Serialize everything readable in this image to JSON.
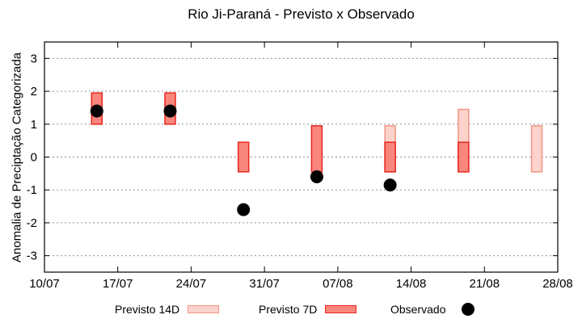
{
  "chart_data": {
    "type": "bar",
    "subtype": "range-bars-with-scatter",
    "title": "Rio Ji-Paraná - Previsto x Observado",
    "xlabel": "",
    "ylabel": "Anomalia de Preciptação Categorizada",
    "ylim": [
      -3.5,
      3.5
    ],
    "y_ticks": [
      3,
      2,
      1,
      0,
      -1,
      -2,
      -3
    ],
    "x_range_days": 49,
    "x_ticks": [
      {
        "day": 0,
        "label": "10/07"
      },
      {
        "day": 7,
        "label": "17/07"
      },
      {
        "day": 14,
        "label": "24/07"
      },
      {
        "day": 21,
        "label": "31/07"
      },
      {
        "day": 28,
        "label": "07/08"
      },
      {
        "day": 35,
        "label": "14/08"
      },
      {
        "day": 42,
        "label": "21/08"
      },
      {
        "day": 49,
        "label": "28/08"
      }
    ],
    "grid": {
      "horizontal": true,
      "style": "dotted",
      "color": "#909090"
    },
    "legend_position": "bottom",
    "series": [
      {
        "name": "Previsto 14D",
        "type": "range-bar",
        "fill": "#fbd3ca",
        "border": "#f29487",
        "points": [
          {
            "date": "12/08",
            "day": 33,
            "low": -0.45,
            "high": 0.95
          },
          {
            "date": "19/08",
            "day": 40,
            "low": -0.45,
            "high": 1.45
          },
          {
            "date": "26/08",
            "day": 47,
            "low": -0.45,
            "high": 0.95
          }
        ]
      },
      {
        "name": "Previsto 7D",
        "type": "range-bar",
        "fill": "#f9867d",
        "border": "#e8251e",
        "points": [
          {
            "date": "15/07",
            "day": 5,
            "low": 1.0,
            "high": 1.95
          },
          {
            "date": "22/07",
            "day": 12,
            "low": 1.0,
            "high": 1.95
          },
          {
            "date": "29/07",
            "day": 19,
            "low": -0.45,
            "high": 0.45
          },
          {
            "date": "05/08",
            "day": 26,
            "low": -0.45,
            "high": 0.95
          },
          {
            "date": "12/08",
            "day": 33,
            "low": -0.45,
            "high": 0.45
          },
          {
            "date": "19/08",
            "day": 40,
            "low": -0.45,
            "high": 0.45
          }
        ]
      },
      {
        "name": "Observado",
        "type": "scatter",
        "color": "#000000",
        "points": [
          {
            "date": "15/07",
            "day": 5,
            "value": 1.4
          },
          {
            "date": "22/07",
            "day": 12,
            "value": 1.4
          },
          {
            "date": "29/07",
            "day": 19,
            "value": -1.6
          },
          {
            "date": "05/08",
            "day": 26,
            "value": -0.6
          },
          {
            "date": "12/08",
            "day": 33,
            "value": -0.85
          }
        ]
      }
    ],
    "legend": [
      {
        "label": "Previsto 14D",
        "swatch": "bar",
        "fill": "#fbd3ca",
        "border": "#f29487"
      },
      {
        "label": "Previsto 7D",
        "swatch": "bar",
        "fill": "#f9867d",
        "border": "#e8251e"
      },
      {
        "label": "Observado",
        "swatch": "dot",
        "fill": "#000000"
      }
    ],
    "colors": {
      "axis": "#000000",
      "grid": "#909090",
      "background": "#ffffff"
    }
  }
}
